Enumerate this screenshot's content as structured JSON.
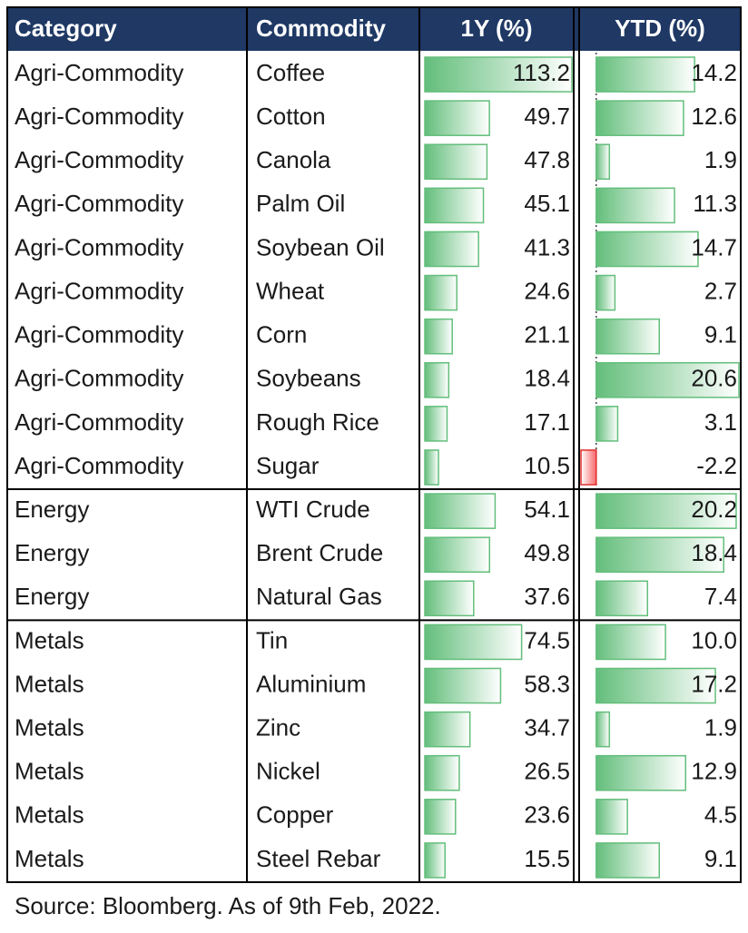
{
  "table": {
    "headers": [
      "Category",
      "Commodity",
      "1Y (%)",
      "YTD (%)"
    ],
    "rows": [
      [
        "Agri-Commodity",
        "Coffee",
        "113.2",
        "14.2"
      ],
      [
        "Agri-Commodity",
        "Cotton",
        "49.7",
        "12.6"
      ],
      [
        "Agri-Commodity",
        "Canola",
        "47.8",
        "1.9"
      ],
      [
        "Agri-Commodity",
        "Palm Oil",
        "45.1",
        "11.3"
      ],
      [
        "Agri-Commodity",
        "Soybean Oil",
        "41.3",
        "14.7"
      ],
      [
        "Agri-Commodity",
        "Wheat",
        "24.6",
        "2.7"
      ],
      [
        "Agri-Commodity",
        "Corn",
        "21.1",
        "9.1"
      ],
      [
        "Agri-Commodity",
        "Soybeans",
        "18.4",
        "20.6"
      ],
      [
        "Agri-Commodity",
        "Rough Rice",
        "17.1",
        "3.1"
      ],
      [
        "Agri-Commodity",
        "Sugar",
        "10.5",
        "-2.2"
      ],
      [
        "Energy",
        "WTI Crude",
        "54.1",
        "20.2"
      ],
      [
        "Energy",
        "Brent Crude",
        "49.8",
        "18.4"
      ],
      [
        "Energy",
        "Natural Gas",
        "37.6",
        "7.4"
      ],
      [
        "Metals",
        "Tin",
        "74.5",
        "10.0"
      ],
      [
        "Metals",
        "Aluminium",
        "58.3",
        "17.2"
      ],
      [
        "Metals",
        "Zinc",
        "34.7",
        "1.9"
      ],
      [
        "Metals",
        "Nickel",
        "26.5",
        "12.9"
      ],
      [
        "Metals",
        "Copper",
        "23.6",
        "4.5"
      ],
      [
        "Metals",
        "Steel Rebar",
        "15.5",
        "9.1"
      ]
    ]
  },
  "footer": {
    "source": "Source: Bloomberg. As of 9th Feb, 2022."
  }
}
